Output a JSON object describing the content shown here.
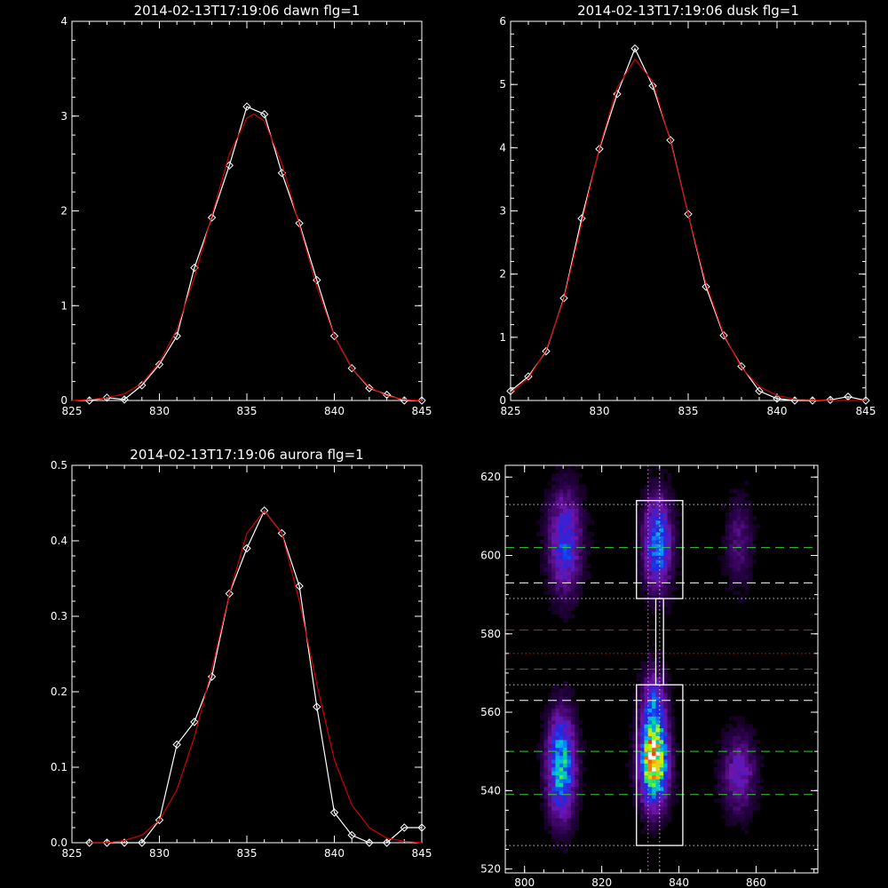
{
  "chart_data": [
    {
      "type": "line",
      "title": "2014-02-13T17:19:06 dawn flg=1",
      "xlim": [
        825,
        845
      ],
      "ylim": [
        0,
        4
      ],
      "x_ticks": [
        825,
        830,
        835,
        840,
        845
      ],
      "y_ticks": [
        0,
        1,
        2,
        3,
        4
      ],
      "grid": false,
      "series": [
        {
          "color": "#ffffff",
          "markers": "diamond",
          "x": [
            826,
            827,
            828,
            829,
            830,
            831,
            832,
            833,
            834,
            835,
            836,
            837,
            838,
            839,
            840,
            841,
            842,
            843,
            844,
            845
          ],
          "y": [
            0.0,
            0.03,
            0.01,
            0.16,
            0.38,
            0.68,
            1.4,
            1.93,
            2.48,
            3.1,
            3.02,
            2.4,
            1.87,
            1.27,
            0.68,
            0.34,
            0.13,
            0.06,
            0.0,
            0.0
          ]
        },
        {
          "color": "#d00000",
          "markers": "none",
          "x": [
            825,
            826,
            827,
            828,
            829,
            830,
            831,
            832,
            833,
            834,
            835,
            835.4,
            836,
            837,
            838,
            839,
            840,
            841,
            842,
            843,
            844,
            845
          ],
          "y": [
            0.0,
            0.01,
            0.03,
            0.07,
            0.18,
            0.4,
            0.75,
            1.3,
            1.95,
            2.6,
            2.98,
            3.02,
            2.95,
            2.5,
            1.85,
            1.2,
            0.68,
            0.34,
            0.14,
            0.05,
            0.01,
            0.0
          ]
        }
      ]
    },
    {
      "type": "line",
      "title": "2014-02-13T17:19:06 dusk flg=1",
      "xlim": [
        825,
        845
      ],
      "ylim": [
        0,
        6
      ],
      "x_ticks": [
        825,
        830,
        835,
        840,
        845
      ],
      "y_ticks": [
        0,
        1,
        2,
        3,
        4,
        5,
        6
      ],
      "grid": false,
      "series": [
        {
          "color": "#ffffff",
          "markers": "diamond",
          "x": [
            825,
            826,
            827,
            828,
            829,
            830,
            831,
            832,
            833,
            834,
            835,
            836,
            837,
            838,
            839,
            840,
            841,
            842,
            843,
            844,
            845
          ],
          "y": [
            0.15,
            0.38,
            0.78,
            1.62,
            2.88,
            3.98,
            4.85,
            5.57,
            4.98,
            4.12,
            2.95,
            1.8,
            1.03,
            0.54,
            0.15,
            0.03,
            0.0,
            0.0,
            0.01,
            0.06,
            0.0
          ]
        },
        {
          "color": "#d00000",
          "markers": "none",
          "x": [
            825,
            826,
            827,
            828,
            829,
            830,
            831,
            832,
            833,
            834,
            835,
            836,
            837,
            838,
            839,
            840,
            841,
            842,
            843,
            844,
            845
          ],
          "y": [
            0.12,
            0.35,
            0.8,
            1.6,
            2.8,
            4.0,
            4.95,
            5.4,
            5.05,
            4.1,
            2.95,
            1.85,
            1.05,
            0.52,
            0.22,
            0.08,
            0.02,
            0.01,
            0.0,
            0.0,
            0.0
          ]
        }
      ]
    },
    {
      "type": "line",
      "title": "2014-02-13T17:19:06 aurora flg=1",
      "xlim": [
        825,
        845
      ],
      "ylim": [
        0,
        0.5
      ],
      "x_ticks": [
        825,
        830,
        835,
        840,
        845
      ],
      "y_ticks": [
        0.0,
        0.1,
        0.2,
        0.3,
        0.4,
        0.5
      ],
      "grid": false,
      "series": [
        {
          "color": "#ffffff",
          "markers": "diamond",
          "x": [
            826,
            827,
            828,
            829,
            830,
            831,
            832,
            833,
            834,
            835,
            836,
            837,
            838,
            839,
            840,
            841,
            842,
            843,
            844,
            845
          ],
          "y": [
            0.0,
            0.0,
            0.0,
            0.0,
            0.03,
            0.13,
            0.16,
            0.22,
            0.33,
            0.39,
            0.44,
            0.41,
            0.34,
            0.18,
            0.04,
            0.01,
            0.0,
            0.0,
            0.02,
            0.02
          ]
        },
        {
          "color": "#d00000",
          "markers": "none",
          "x": [
            826,
            827,
            828,
            829,
            830,
            831,
            832,
            833,
            834,
            835,
            836,
            837,
            838,
            839,
            840,
            841,
            842,
            843,
            844,
            845
          ],
          "y": [
            0.0,
            0.0,
            0.003,
            0.01,
            0.03,
            0.07,
            0.14,
            0.23,
            0.33,
            0.41,
            0.44,
            0.41,
            0.32,
            0.21,
            0.11,
            0.05,
            0.02,
            0.006,
            0.002,
            0.0
          ]
        }
      ]
    },
    {
      "type": "heatmap",
      "title": "",
      "xlim": [
        795,
        876
      ],
      "ylim": [
        519,
        623
      ],
      "x_ticks": [
        800,
        820,
        840,
        860
      ],
      "y_ticks": [
        520,
        540,
        560,
        580,
        600,
        620
      ],
      "blobs": [
        {
          "x": 810,
          "y": 603,
          "sx": 3,
          "sy": 9,
          "amp": 0.42
        },
        {
          "x": 834,
          "y": 603,
          "sx": 2.5,
          "sy": 8,
          "amp": 0.55
        },
        {
          "x": 855,
          "y": 603,
          "sx": 2.5,
          "sy": 8,
          "amp": 0.18
        },
        {
          "x": 809,
          "y": 546,
          "sx": 2.5,
          "sy": 9,
          "amp": 0.65
        },
        {
          "x": 833,
          "y": 546,
          "sx": 2.5,
          "sy": 7,
          "amp": 0.95
        },
        {
          "x": 833,
          "y": 560,
          "sx": 2.2,
          "sy": 7,
          "amp": 0.45
        },
        {
          "x": 855,
          "y": 544,
          "sx": 3,
          "sy": 7,
          "amp": 0.3
        }
      ],
      "boxes": [
        {
          "x0": 829,
          "x1": 841,
          "y0": 589,
          "y1": 614
        },
        {
          "x0": 829,
          "x1": 841,
          "y0": 526,
          "y1": 567
        },
        {
          "x0": 834,
          "x1": 836,
          "y0": 567,
          "y1": 589
        }
      ],
      "hlines": [
        {
          "y": 613,
          "color": "#c8c8c8",
          "style": "dotted"
        },
        {
          "y": 602,
          "color": "#33cc33",
          "style": "dashed"
        },
        {
          "y": 593,
          "color": "#ffffff",
          "style": "dashed"
        },
        {
          "y": 589,
          "color": "#c8c8c8",
          "style": "dotted"
        },
        {
          "y": 581,
          "color": "#cc2222",
          "style": "dashed"
        },
        {
          "y": 575,
          "color": "#cc2222",
          "style": "dotted"
        },
        {
          "y": 571,
          "color": "#cc2222",
          "style": "dashed"
        },
        {
          "y": 567,
          "color": "#c8c8c8",
          "style": "dotted"
        },
        {
          "y": 563,
          "color": "#ffffff",
          "style": "dashed"
        },
        {
          "y": 550,
          "color": "#33cc33",
          "style": "dashed"
        },
        {
          "y": 539,
          "color": "#33cc33",
          "style": "dashed"
        },
        {
          "y": 526,
          "color": "#c8c8c8",
          "style": "dotted"
        }
      ],
      "vlines": [
        {
          "x": 832,
          "color": "#ff66ff",
          "style": "dotted"
        },
        {
          "x": 835,
          "color": "#c8c8c8",
          "style": "dotted"
        }
      ]
    }
  ]
}
